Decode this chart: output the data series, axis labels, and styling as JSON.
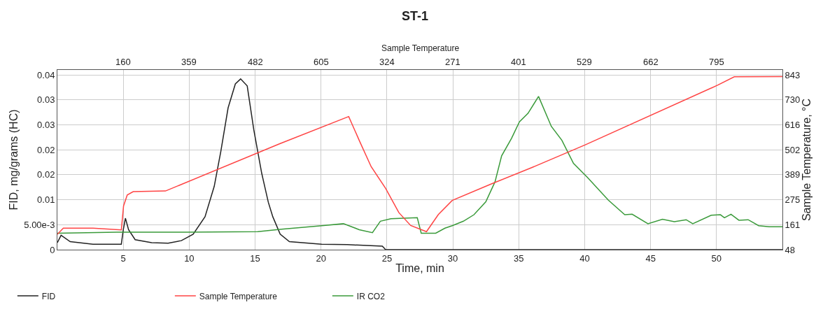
{
  "chart_data": {
    "type": "line",
    "title": "ST-1",
    "xlabel": "Time, min",
    "ylabel": "FID, mg/grams (HC)",
    "y2label": "Sample Temperature, °C",
    "x2label": "Sample Temperature",
    "xlim": [
      0,
      55
    ],
    "xticks": [
      5,
      10,
      15,
      20,
      25,
      30,
      35,
      40,
      45,
      50
    ],
    "annotations": [
      "160",
      "359",
      "482",
      "605",
      "324",
      "271",
      "401",
      "529",
      "662",
      "795"
    ],
    "ylim": [
      0,
      0.036
    ],
    "yticks": [
      0,
      {
        "value": 0.005,
        "label": "5.00e-3"
      },
      0.01,
      {
        "value": 0.015,
        "label": "0.02"
      },
      0.02,
      {
        "value": 0.025,
        "label": "0.03"
      },
      0.03,
      {
        "value": 0.035,
        "label": "0.04"
      }
    ],
    "y2lim": [
      48,
      866
    ],
    "y2ticks": [
      48,
      161,
      275,
      389,
      502,
      616,
      730,
      843
    ],
    "grid": true,
    "legend": "bottom",
    "marker": "none",
    "line_style": "solid",
    "series": [
      {
        "name": "FID",
        "color": "#222222",
        "x": [
          0,
          0.28,
          0.97,
          2.7,
          4.85,
          5.0,
          5.16,
          5.4,
          5.9,
          7.15,
          8.4,
          9.4,
          10.3,
          11.2,
          11.9,
          12.4,
          12.95,
          13.5,
          13.9,
          14.4,
          14.9,
          15.5,
          16.0,
          16.34,
          16.9,
          17.6,
          20.05,
          22.0,
          24.65,
          24.9,
          55
        ],
        "values": [
          0.0014,
          0.0029,
          0.0016,
          0.0011,
          0.0011,
          0.004,
          0.0063,
          0.004,
          0.002,
          0.0014,
          0.0013,
          0.0018,
          0.0031,
          0.0066,
          0.0127,
          0.0197,
          0.0284,
          0.0332,
          0.0342,
          0.0328,
          0.024,
          0.0153,
          0.0095,
          0.0066,
          0.0031,
          0.0016,
          0.0011,
          0.001,
          0.0007,
          0,
          0
        ]
      },
      {
        "name": "Sample Temperature",
        "color": "#ff4444",
        "axis": "y2",
        "x": [
          0,
          0.45,
          2.7,
          4.85,
          5.02,
          5.3,
          5.75,
          8.2,
          16.87,
          22.1,
          22.9,
          23.8,
          24.9,
          25.9,
          26.8,
          28.0,
          28.9,
          29.95,
          32.95,
          35.97,
          40.04,
          50.1,
          51.35,
          55
        ],
        "values": [
          118,
          146,
          146,
          138,
          247,
          297,
          312,
          315,
          530,
          654,
          545,
          426,
          327,
          217,
          158,
          130,
          208,
          272,
          348,
          421,
          525,
          797,
          835,
          836
        ]
      },
      {
        "name": "IR CO2",
        "color": "#3a9a3a",
        "x": [
          0,
          4.5,
          9.8,
          15.2,
          17.0,
          20.05,
          21.7,
          22.9,
          23.9,
          24.5,
          25.3,
          27.3,
          27.6,
          28.7,
          29.4,
          29.95,
          30.8,
          31.6,
          32.5,
          33.2,
          33.7,
          34.45,
          35.05,
          35.7,
          36.5,
          37.47,
          38.27,
          39.15,
          40.2,
          41.8,
          43.04,
          43.6,
          44.8,
          45.9,
          46.8,
          47.7,
          48.2,
          49.6,
          50.3,
          50.6,
          51.1,
          51.7,
          52.4,
          53.2,
          54.0,
          55
        ],
        "values": [
          0.0033,
          0.0035,
          0.0035,
          0.0036,
          0.0041,
          0.0048,
          0.0052,
          0.004,
          0.0034,
          0.0057,
          0.0062,
          0.0064,
          0.0033,
          0.0033,
          0.0043,
          0.0048,
          0.0057,
          0.007,
          0.0096,
          0.0136,
          0.0188,
          0.0223,
          0.0256,
          0.0273,
          0.0307,
          0.0247,
          0.0219,
          0.0173,
          0.0145,
          0.0099,
          0.007,
          0.0071,
          0.0052,
          0.0061,
          0.0056,
          0.006,
          0.0052,
          0.0069,
          0.007,
          0.0064,
          0.0071,
          0.0059,
          0.006,
          0.0048,
          0.0046,
          0.0046
        ]
      }
    ]
  }
}
